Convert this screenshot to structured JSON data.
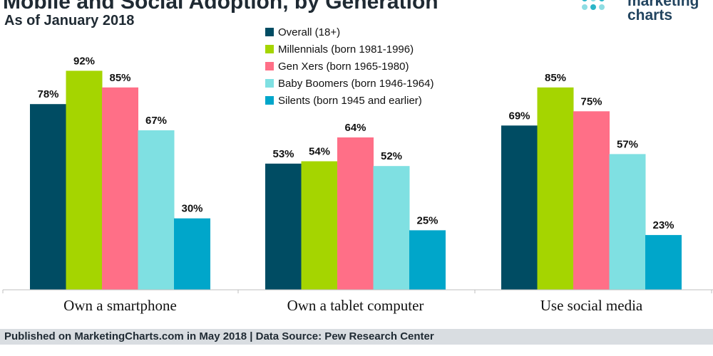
{
  "title": "Mobile and Social Adoption, by Generation",
  "subtitle": "As of January 2018",
  "logo": {
    "line1": "marketing",
    "line2": "charts"
  },
  "colors": {
    "logo_dots": [
      "#2bb5c8",
      "#8edde3",
      "#2bb5c8",
      "#8edde3",
      "#2bb5c8",
      "#8edde3"
    ]
  },
  "footer": {
    "source": "Published on MarketingCharts.com in May 2018 | Data Source: Pew Research Center"
  },
  "chart_data": {
    "type": "bar",
    "categories": [
      "Own a smartphone",
      "Own a tablet computer",
      "Use social media"
    ],
    "series": [
      {
        "name": "Overall (18+)",
        "color": "#004c63",
        "values": [
          78,
          53,
          69
        ]
      },
      {
        "name": "Millennials (born 1981-1996)",
        "color": "#a5d500",
        "values": [
          92,
          54,
          85
        ]
      },
      {
        "name": "Gen Xers (born 1965-1980)",
        "color": "#ff6f87",
        "values": [
          85,
          64,
          75
        ]
      },
      {
        "name": "Baby Boomers (born 1946-1964)",
        "color": "#7fe0e2",
        "values": [
          67,
          52,
          57
        ]
      },
      {
        "name": "Silents (born 1945 and earlier)",
        "color": "#00a6ca",
        "values": [
          30,
          25,
          23
        ]
      }
    ],
    "value_suffix": "%",
    "ylim": [
      0,
      100
    ],
    "grid": false,
    "legend_position": "top-center"
  }
}
